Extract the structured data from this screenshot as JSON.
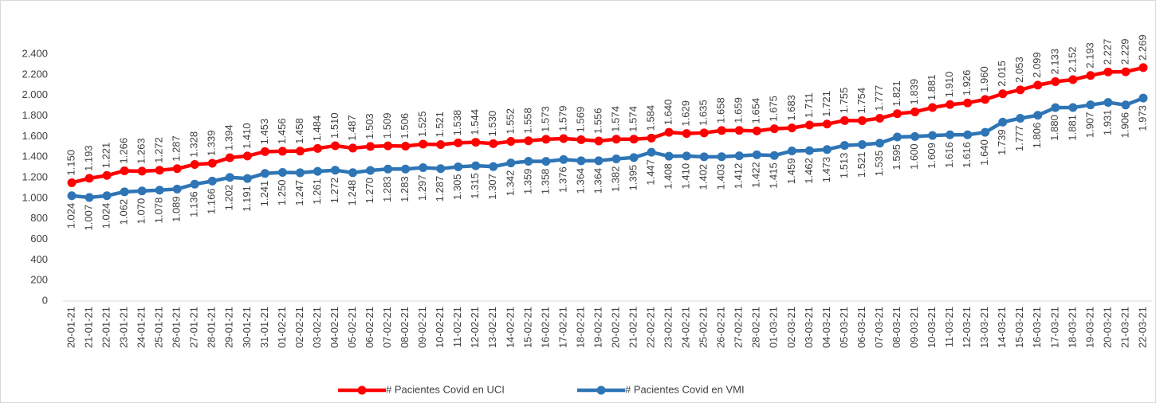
{
  "chart_data": {
    "type": "line",
    "categories": [
      "20-01-21",
      "21-01-21",
      "22-01-21",
      "23-01-21",
      "24-01-21",
      "25-01-21",
      "26-01-21",
      "27-01-21",
      "28-01-21",
      "29-01-21",
      "30-01-21",
      "31-01-21",
      "01-02-21",
      "02-02-21",
      "03-02-21",
      "04-02-21",
      "05-02-21",
      "06-02-21",
      "07-02-21",
      "08-02-21",
      "09-02-21",
      "10-02-21",
      "11-02-21",
      "12-02-21",
      "13-02-21",
      "14-02-21",
      "15-02-21",
      "16-02-21",
      "17-02-21",
      "18-02-21",
      "19-02-21",
      "20-02-21",
      "21-02-21",
      "22-02-21",
      "23-02-21",
      "24-02-21",
      "25-02-21",
      "26-02-21",
      "27-02-21",
      "28-02-21",
      "01-03-21",
      "02-03-21",
      "03-03-21",
      "04-03-21",
      "05-03-21",
      "06-03-21",
      "07-03-21",
      "08-03-21",
      "09-03-21",
      "10-03-21",
      "11-03-21",
      "12-03-21",
      "13-03-21",
      "14-03-21",
      "15-03-21",
      "16-03-21",
      "17-03-21",
      "18-03-21",
      "19-03-21",
      "20-03-21",
      "21-03-21",
      "22-03-21"
    ],
    "series": [
      {
        "name": "# Pacientes Covid en UCI",
        "color": "#ff0000",
        "label_side": "above",
        "values": [
          1150,
          1193,
          1221,
          1266,
          1263,
          1272,
          1287,
          1328,
          1339,
          1394,
          1410,
          1453,
          1456,
          1458,
          1484,
          1510,
          1487,
          1503,
          1509,
          1506,
          1525,
          1521,
          1538,
          1544,
          1530,
          1552,
          1558,
          1573,
          1579,
          1569,
          1556,
          1574,
          1574,
          1584,
          1640,
          1629,
          1635,
          1658,
          1659,
          1654,
          1675,
          1683,
          1711,
          1721,
          1755,
          1754,
          1777,
          1821,
          1839,
          1881,
          1910,
          1926,
          1960,
          2015,
          2053,
          2099,
          2133,
          2152,
          2193,
          2227,
          2229,
          2269
        ],
        "value_labels": [
          "1.150",
          "1.193",
          "1.221",
          "1.266",
          "1.263",
          "1.272",
          "1.287",
          "1.328",
          "1.339",
          "1.394",
          "1.410",
          "1.453",
          "1.456",
          "1.458",
          "1.484",
          "1.510",
          "1.487",
          "1.503",
          "1.509",
          "1.506",
          "1.525",
          "1.521",
          "1.538",
          "1.544",
          "1.530",
          "1.552",
          "1.558",
          "1.573",
          "1.579",
          "1.569",
          "1.556",
          "1.574",
          "1.574",
          "1.584",
          "1.640",
          "1.629",
          "1.635",
          "1.658",
          "1.659",
          "1.654",
          "1.675",
          "1.683",
          "1.711",
          "1.721",
          "1.755",
          "1.754",
          "1.777",
          "1.821",
          "1.839",
          "1.881",
          "1.910",
          "1.926",
          "1.960",
          "2.015",
          "2.053",
          "2.099",
          "2.133",
          "2.152",
          "2.193",
          "2.227",
          "2.229",
          "2.269"
        ]
      },
      {
        "name": "# Pacientes Covid en VMI",
        "color": "#2e75b6",
        "label_side": "below",
        "values": [
          1024,
          1007,
          1024,
          1062,
          1070,
          1078,
          1089,
          1136,
          1166,
          1202,
          1191,
          1241,
          1250,
          1247,
          1261,
          1272,
          1248,
          1270,
          1283,
          1283,
          1297,
          1287,
          1305,
          1315,
          1307,
          1342,
          1359,
          1358,
          1376,
          1364,
          1364,
          1382,
          1395,
          1447,
          1408,
          1410,
          1402,
          1403,
          1412,
          1422,
          1415,
          1459,
          1462,
          1473,
          1513,
          1521,
          1535,
          1595,
          1600,
          1609,
          1616,
          1616,
          1640,
          1739,
          1777,
          1806,
          1880,
          1881,
          1907,
          1931,
          1906,
          1973
        ],
        "value_labels": [
          "1.024",
          "1.007",
          "1.024",
          "1.062",
          "1.070",
          "1.078",
          "1.089",
          "1.136",
          "1.166",
          "1.202",
          "1.191",
          "1.241",
          "1.250",
          "1.247",
          "1.261",
          "1.272",
          "1.248",
          "1.270",
          "1.283",
          "1.283",
          "1.297",
          "1.287",
          "1.305",
          "1.315",
          "1.307",
          "1.342",
          "1.359",
          "1.358",
          "1.376",
          "1.364",
          "1.364",
          "1.382",
          "1.395",
          "1.447",
          "1.408",
          "1.410",
          "1.402",
          "1.403",
          "1.412",
          "1.422",
          "1.415",
          "1.459",
          "1.462",
          "1.473",
          "1.513",
          "1.521",
          "1.535",
          "1.595",
          "1.600",
          "1.609",
          "1.616",
          "1.616",
          "1.640",
          "1.739",
          "1.777",
          "1.806",
          "1.880",
          "1.881",
          "1.907",
          "1.931",
          "1.906",
          "1.973"
        ]
      }
    ],
    "ylim": [
      0,
      2400
    ],
    "yticks": [
      0,
      200,
      400,
      600,
      800,
      {
        "value": 1000,
        "label": "1.000"
      },
      {
        "value": 1200,
        "label": "1.200"
      },
      {
        "value": 1400,
        "label": "1.400"
      },
      {
        "value": 1600,
        "label": "1.600"
      },
      {
        "value": 1800,
        "label": "1.800"
      },
      {
        "value": 2000,
        "label": "2.000"
      },
      {
        "value": 2200,
        "label": "2.200"
      },
      {
        "value": 2400,
        "label": "2.400"
      }
    ],
    "grid": false,
    "legend": "bottom"
  }
}
